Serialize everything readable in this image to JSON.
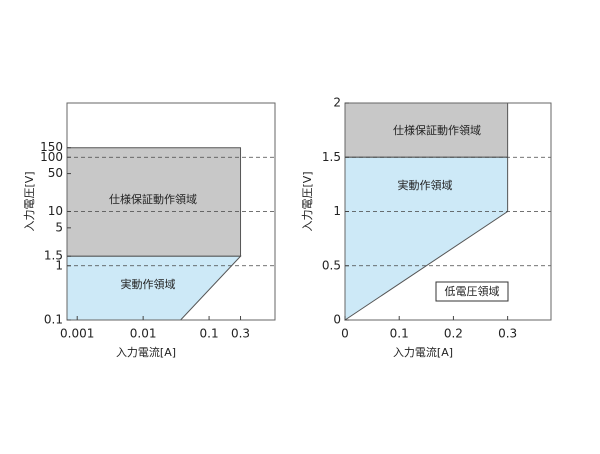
{
  "chart_data": [
    {
      "type": "region",
      "xlabel": "入力電流[A]",
      "ylabel": "入力電圧[V]",
      "log_x": true,
      "log_y": true,
      "xlim": [
        0.0007,
        1
      ],
      "ylim": [
        0.1,
        1000
      ],
      "xticks": [
        0.001,
        0.01,
        0.1,
        0.3
      ],
      "yticks": [
        0.1,
        1,
        1.5,
        5,
        10,
        50,
        100,
        150
      ],
      "hlines": [
        1,
        10,
        100
      ],
      "regions": [
        {
          "name": "仕様保証動作領域",
          "color": "#c8c8c8",
          "x": [
            0.0007,
            0.3,
            0.3,
            0.0007
          ],
          "y": [
            1.5,
            1.5,
            150,
            150
          ]
        },
        {
          "name": "実動作領域",
          "color": "#cde9f7",
          "x": [
            0.0007,
            0.037,
            0.3,
            0.0007
          ],
          "y": [
            0.1,
            0.1,
            1.5,
            1.5
          ]
        }
      ]
    },
    {
      "type": "region",
      "xlabel": "入力電流[A]",
      "ylabel": "入力電圧[V]",
      "log_x": false,
      "log_y": false,
      "xlim": [
        0,
        0.38
      ],
      "ylim": [
        0,
        2
      ],
      "xticks": [
        0,
        0.1,
        0.2,
        0.3
      ],
      "yticks": [
        0,
        0.5,
        1,
        1.5,
        2
      ],
      "hlines": [
        0.5,
        1,
        1.5
      ],
      "regions": [
        {
          "name": "仕様保証動作領域",
          "color": "#c8c8c8",
          "x": [
            0,
            0.3,
            0.3,
            0
          ],
          "y": [
            1.5,
            1.5,
            2,
            2
          ]
        },
        {
          "name": "実動作領域",
          "color": "#cde9f7",
          "x": [
            0,
            0.3,
            0.3,
            0
          ],
          "y": [
            0,
            1,
            1.5,
            1.5
          ]
        }
      ],
      "annotation": "低電圧領域"
    }
  ]
}
